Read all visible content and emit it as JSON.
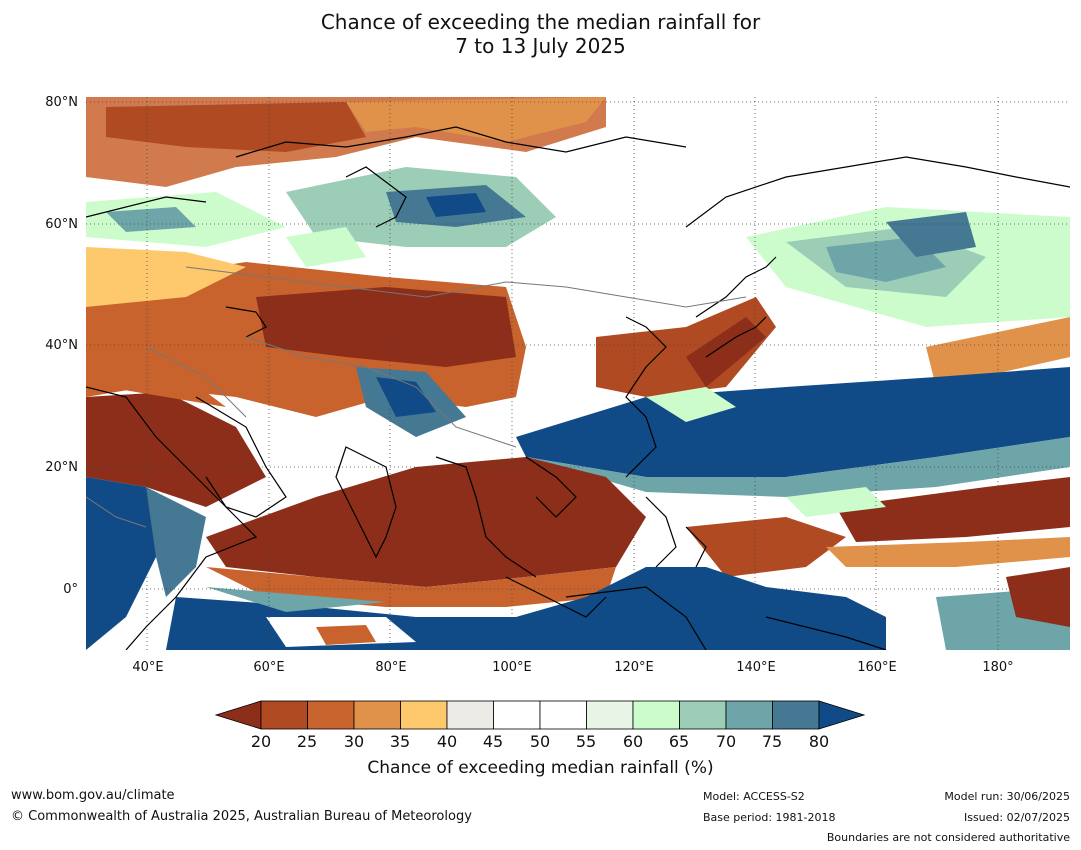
{
  "title_line1": "Chance of exceeding the median rainfall for",
  "title_line2": "7 to 13 July 2025",
  "lat_labels": [
    "80°N",
    "60°N",
    "40°N",
    "20°N",
    "0°"
  ],
  "lon_labels": [
    "40°E",
    "60°E",
    "80°E",
    "100°E",
    "120°E",
    "140°E",
    "160°E",
    "180°"
  ],
  "colorbar": {
    "ticks": [
      "20",
      "25",
      "30",
      "35",
      "40",
      "45",
      "50",
      "55",
      "60",
      "65",
      "70",
      "75",
      "80"
    ],
    "colors": [
      "#8c2e19",
      "#b04a22",
      "#c8632e",
      "#e0924a",
      "#fdc96c",
      "#ecebe6",
      "#ffffff",
      "#ffffff",
      "#e8f5e6",
      "#ccfccc",
      "#9ccdb7",
      "#6da5a8",
      "#457893",
      "#114b87"
    ],
    "title": "Chance of exceeding median rainfall (%)"
  },
  "footer": {
    "url": "www.bom.gov.au/climate",
    "copyright": "© Commonwealth of Australia 2025, Australian Bureau of Meteorology",
    "model": "Model: ACCESS-S2",
    "base_period": "Base period: 1981-2018",
    "model_run": "Model run: 30/06/2025",
    "issued": "Issued: 02/07/2025",
    "disclaimer": "Boundaries are not considered authoritative"
  }
}
